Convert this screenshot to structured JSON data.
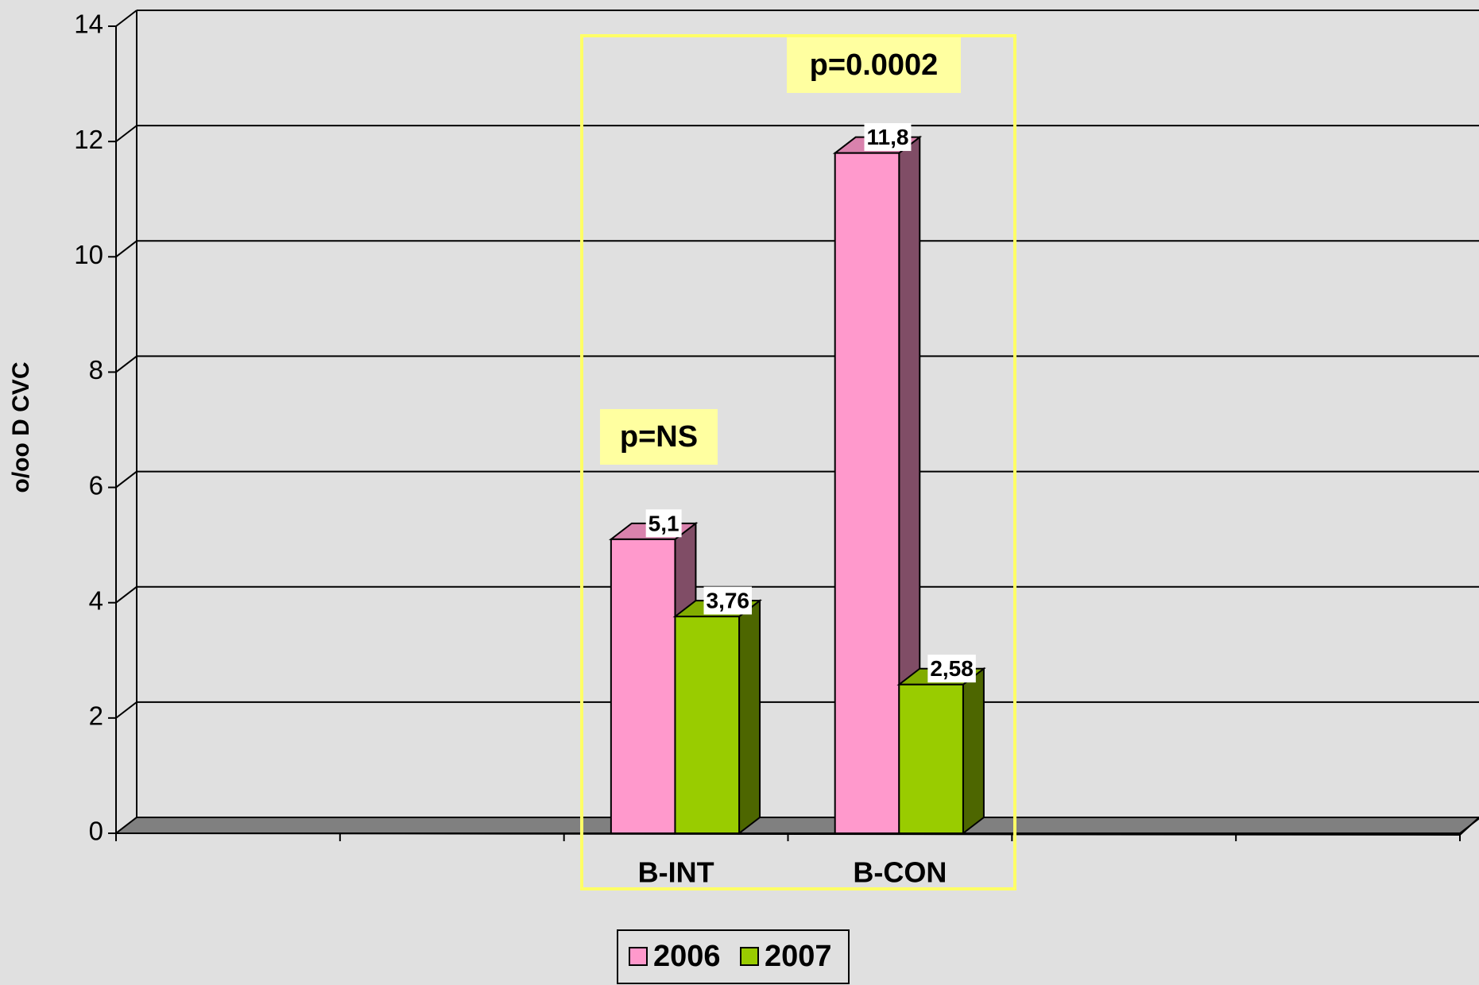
{
  "chart_data": {
    "type": "bar3d",
    "y_label": "o/oo D CVC",
    "categories": [
      null,
      null,
      "B-INT",
      "B-CON",
      null,
      null
    ],
    "series": [
      {
        "name": "2006",
        "color": "#ff99cc",
        "values": [
          null,
          null,
          5.1,
          11.8,
          null,
          null
        ],
        "value_labels": [
          null,
          null,
          "5,1",
          "11,8",
          null,
          null
        ]
      },
      {
        "name": "2007",
        "color": "#99cc00",
        "values": [
          null,
          null,
          3.76,
          2.58,
          null,
          null
        ],
        "value_labels": [
          null,
          null,
          "3,76",
          "2,58",
          null,
          null
        ]
      }
    ],
    "annotations": [
      "p=NS",
      "p=0.0002"
    ],
    "ylim": [
      0,
      14
    ],
    "yticks": [
      0,
      2,
      4,
      6,
      8,
      10,
      12,
      14
    ],
    "grid": true,
    "legend": "bottom"
  }
}
